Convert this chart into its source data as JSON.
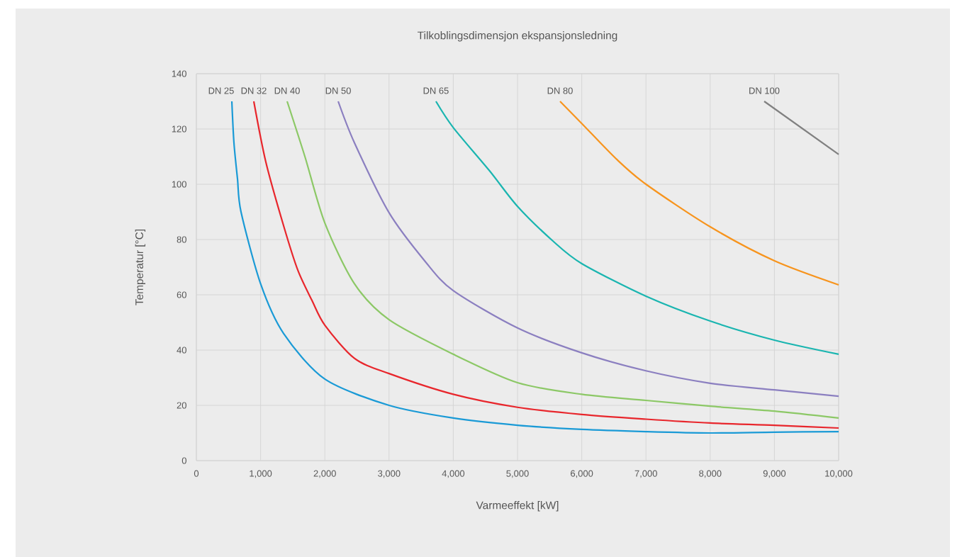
{
  "chart_data": {
    "type": "line",
    "title": "Tilkoblingsdimensjon ekspansjonsledning",
    "xlabel": "Varmeeffekt [kW]",
    "ylabel": "Temperatur [°C]",
    "xlim": [
      0,
      10000
    ],
    "ylim": [
      0,
      140
    ],
    "xticks": [
      0,
      {
        "value": 1000,
        "label": "1,000"
      },
      {
        "value": 2000,
        "label": "2,000"
      },
      {
        "value": 3000,
        "label": "3,000"
      },
      {
        "value": 4000,
        "label": "4,000"
      },
      {
        "value": 5000,
        "label": "5,000"
      },
      {
        "value": 6000,
        "label": "6,000"
      },
      {
        "value": 7000,
        "label": "7,000"
      },
      {
        "value": 8000,
        "label": "8,000"
      },
      {
        "value": 9000,
        "label": "9,000"
      },
      {
        "value": 10000,
        "label": "10,000"
      }
    ],
    "yticks": [
      0,
      20,
      40,
      60,
      80,
      100,
      120,
      140
    ],
    "grid": true,
    "legend": false,
    "marker": "none",
    "line_style": "solid",
    "series": [
      {
        "name": "DN 25",
        "color": "#1a9ad6",
        "x": [
          552,
          585,
          640,
          695,
          1000,
          1358,
          2000,
          3000,
          4000,
          5000,
          6000,
          7000,
          8000,
          9000,
          10000
        ],
        "values": [
          130,
          115,
          102,
          90,
          64,
          46,
          29.5,
          20,
          15.4,
          12.8,
          11.3,
          10.5,
          10,
          10.3,
          10.5
        ]
      },
      {
        "name": "DN 32",
        "color": "#e8262c",
        "x": [
          894,
          1082,
          1358,
          1578,
          1799,
          2000,
          2461,
          3000,
          4000,
          5000,
          6000,
          7000,
          8000,
          9000,
          10000
        ],
        "values": [
          130,
          108,
          85,
          69,
          58,
          49,
          37,
          31.5,
          24,
          19.3,
          16.7,
          15,
          13.6,
          12.8,
          11.8
        ]
      },
      {
        "name": "DN 40",
        "color": "#8cc866",
        "x": [
          1413,
          1690,
          2000,
          2461,
          3000,
          4000,
          5000,
          6000,
          7000,
          8000,
          9000,
          10000
        ],
        "values": [
          130,
          110,
          86,
          64,
          51,
          38.5,
          28.2,
          24,
          21.8,
          19.7,
          17.9,
          15.4
        ]
      },
      {
        "name": "DN 50",
        "color": "#8b7fc0",
        "x": [
          2208,
          2461,
          3000,
          3565,
          4000,
          5000,
          6000,
          7000,
          8000,
          9000,
          10000
        ],
        "values": [
          130,
          115,
          89.7,
          72,
          61.5,
          48,
          39,
          32.5,
          28,
          25.6,
          23.3
        ]
      },
      {
        "name": "DN 65",
        "color": "#1ab5b0",
        "x": [
          3730,
          4000,
          4560,
          5000,
          5550,
          6000,
          7000,
          8000,
          9000,
          10000
        ],
        "values": [
          130,
          120.5,
          105,
          92,
          79.5,
          71.3,
          59.5,
          50.5,
          43.6,
          38.5
        ]
      },
      {
        "name": "DN 80",
        "color": "#f7941d",
        "x": [
          5662,
          6000,
          6545,
          7000,
          8000,
          9000,
          10000
        ],
        "values": [
          130,
          122,
          109,
          100,
          84.6,
          72.3,
          63.6
        ]
      },
      {
        "name": "DN 100",
        "color": "#808080",
        "x": [
          8841,
          10000
        ],
        "values": [
          130,
          110.8
        ]
      }
    ]
  }
}
